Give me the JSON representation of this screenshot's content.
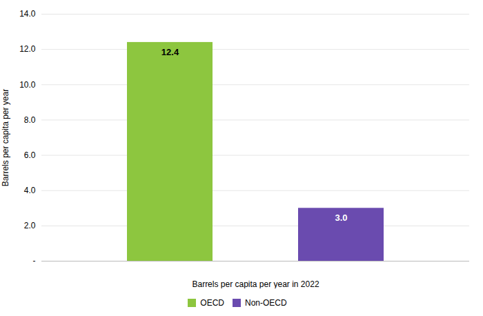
{
  "chart_data": {
    "type": "bar",
    "categories": [
      "OECD",
      "Non-OECD"
    ],
    "values": [
      12.4,
      3.0
    ],
    "value_labels": [
      "12.4",
      "3.0"
    ],
    "colors": [
      "#8dc63f",
      "#6a4baf"
    ],
    "xlabel": "Barrels per capita per year in 2022",
    "ylabel": "Barrels per capita per year",
    "ylim": [
      0,
      14.0
    ],
    "yticks": [
      {
        "value": 0,
        "label": "-"
      },
      {
        "value": 2.0,
        "label": "2.0"
      },
      {
        "value": 4.0,
        "label": "4.0"
      },
      {
        "value": 6.0,
        "label": "6.0"
      },
      {
        "value": 8.0,
        "label": "8.0"
      },
      {
        "value": 10.0,
        "label": "10.0"
      },
      {
        "value": 12.0,
        "label": "12.0"
      },
      {
        "value": 14.0,
        "label": "14.0"
      }
    ],
    "grid": true,
    "legend": "bottom",
    "data_labels": true,
    "tick_labels": "y"
  }
}
